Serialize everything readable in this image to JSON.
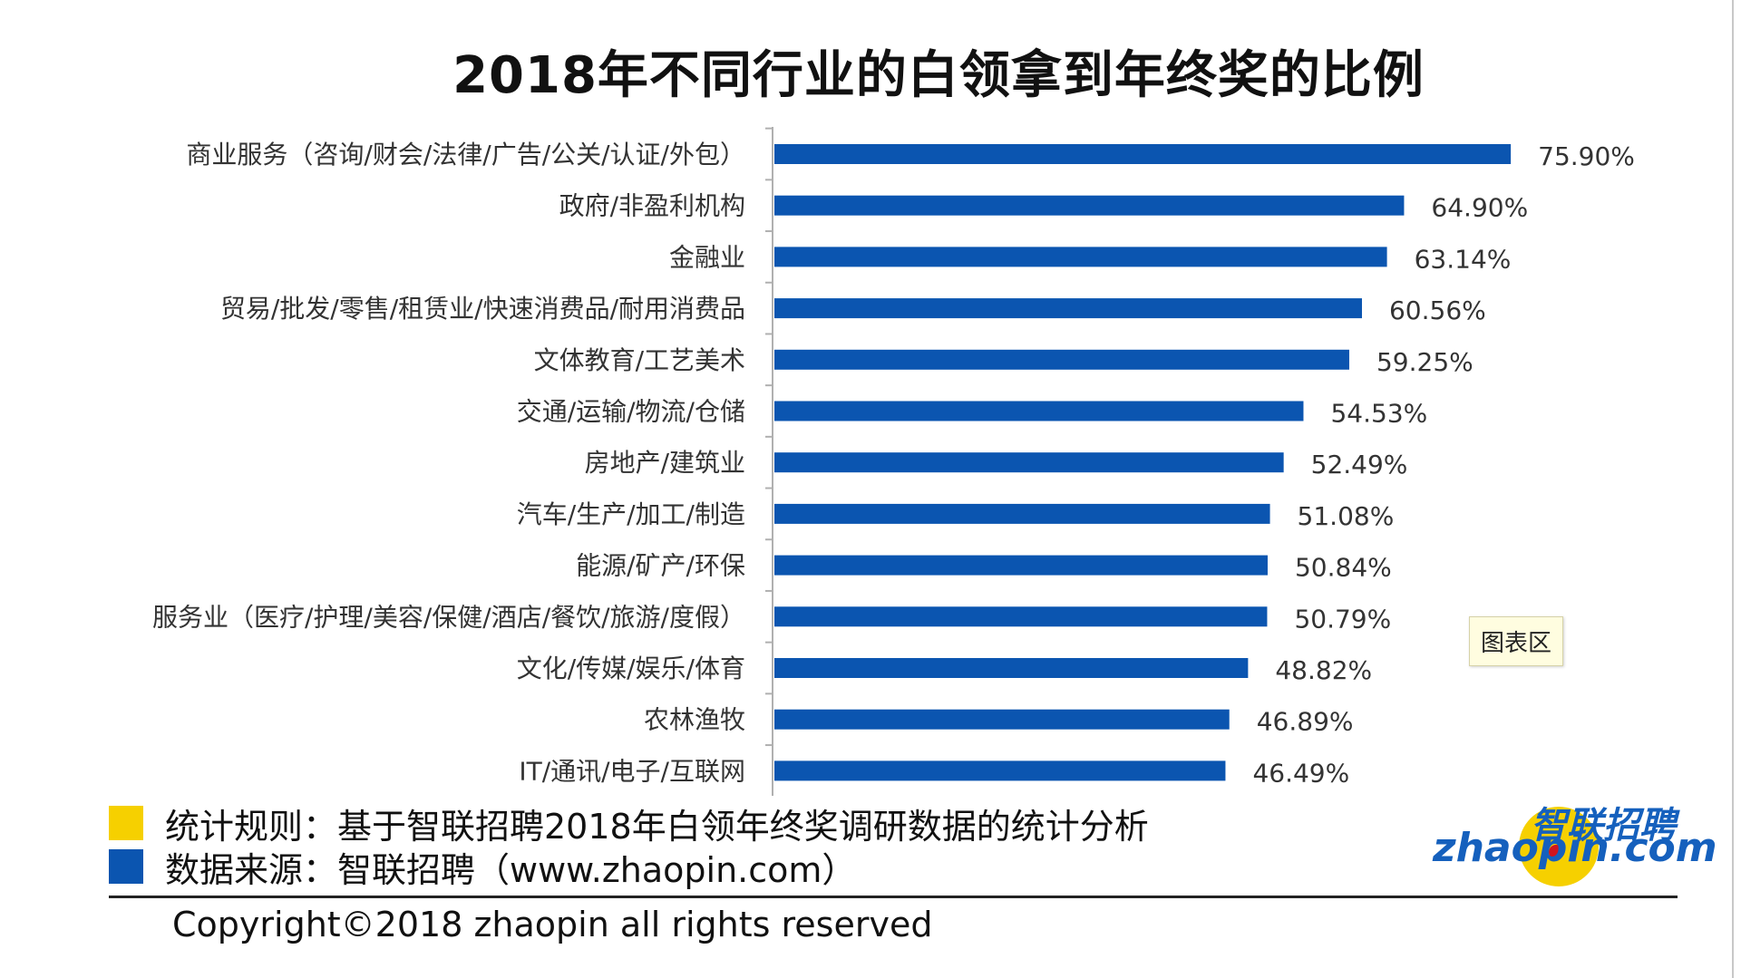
{
  "chart_data": {
    "type": "bar",
    "orientation": "horizontal",
    "title": "2018年不同行业的白领拿到年终奖的比例",
    "categories": [
      "商业服务（咨询/财会/法律/广告/公关/认证/外包）",
      "政府/非盈利机构",
      "金融业",
      "贸易/批发/零售/租赁业/快速消费品/耐用消费品",
      "文体教育/工艺美术",
      "交通/运输/物流/仓储",
      "房地产/建筑业",
      "汽车/生产/加工/制造",
      "能源/矿产/环保",
      "服务业（医疗/护理/美容/保健/酒店/餐饮/旅游/度假）",
      "文化/传媒/娱乐/体育",
      "农林渔牧",
      "IT/通讯/电子/互联网"
    ],
    "values": [
      75.9,
      64.9,
      63.14,
      60.56,
      59.25,
      54.53,
      52.49,
      51.08,
      50.84,
      50.79,
      48.82,
      46.89,
      46.49
    ],
    "value_labels": [
      "75.90%",
      "64.90%",
      "63.14%",
      "60.56%",
      "59.25%",
      "54.53%",
      "52.49%",
      "51.08%",
      "50.84%",
      "50.79%",
      "48.82%",
      "46.89%",
      "46.49%"
    ],
    "xlim": [
      0,
      80
    ],
    "grid": false,
    "bar_color": "#0b55b0"
  },
  "tooltip": {
    "text": "图表区"
  },
  "legend": {
    "items": [
      {
        "text": "统计规则：基于智联招聘2018年白领年终奖调研数据的统计分析",
        "color": "#f6d000"
      },
      {
        "text": "数据来源：智联招聘（www.zhaopin.com）",
        "color": "#0b55b0"
      }
    ]
  },
  "footer": {
    "copyright": "Copyright©2018 zhaopin all rights reserved"
  },
  "logo": {
    "cn_text": "智联招聘",
    "en_text": "zhaopin.com",
    "circle_color": "#f6d000",
    "dot_color": "#d0151d",
    "text_color": "#1560bd"
  }
}
